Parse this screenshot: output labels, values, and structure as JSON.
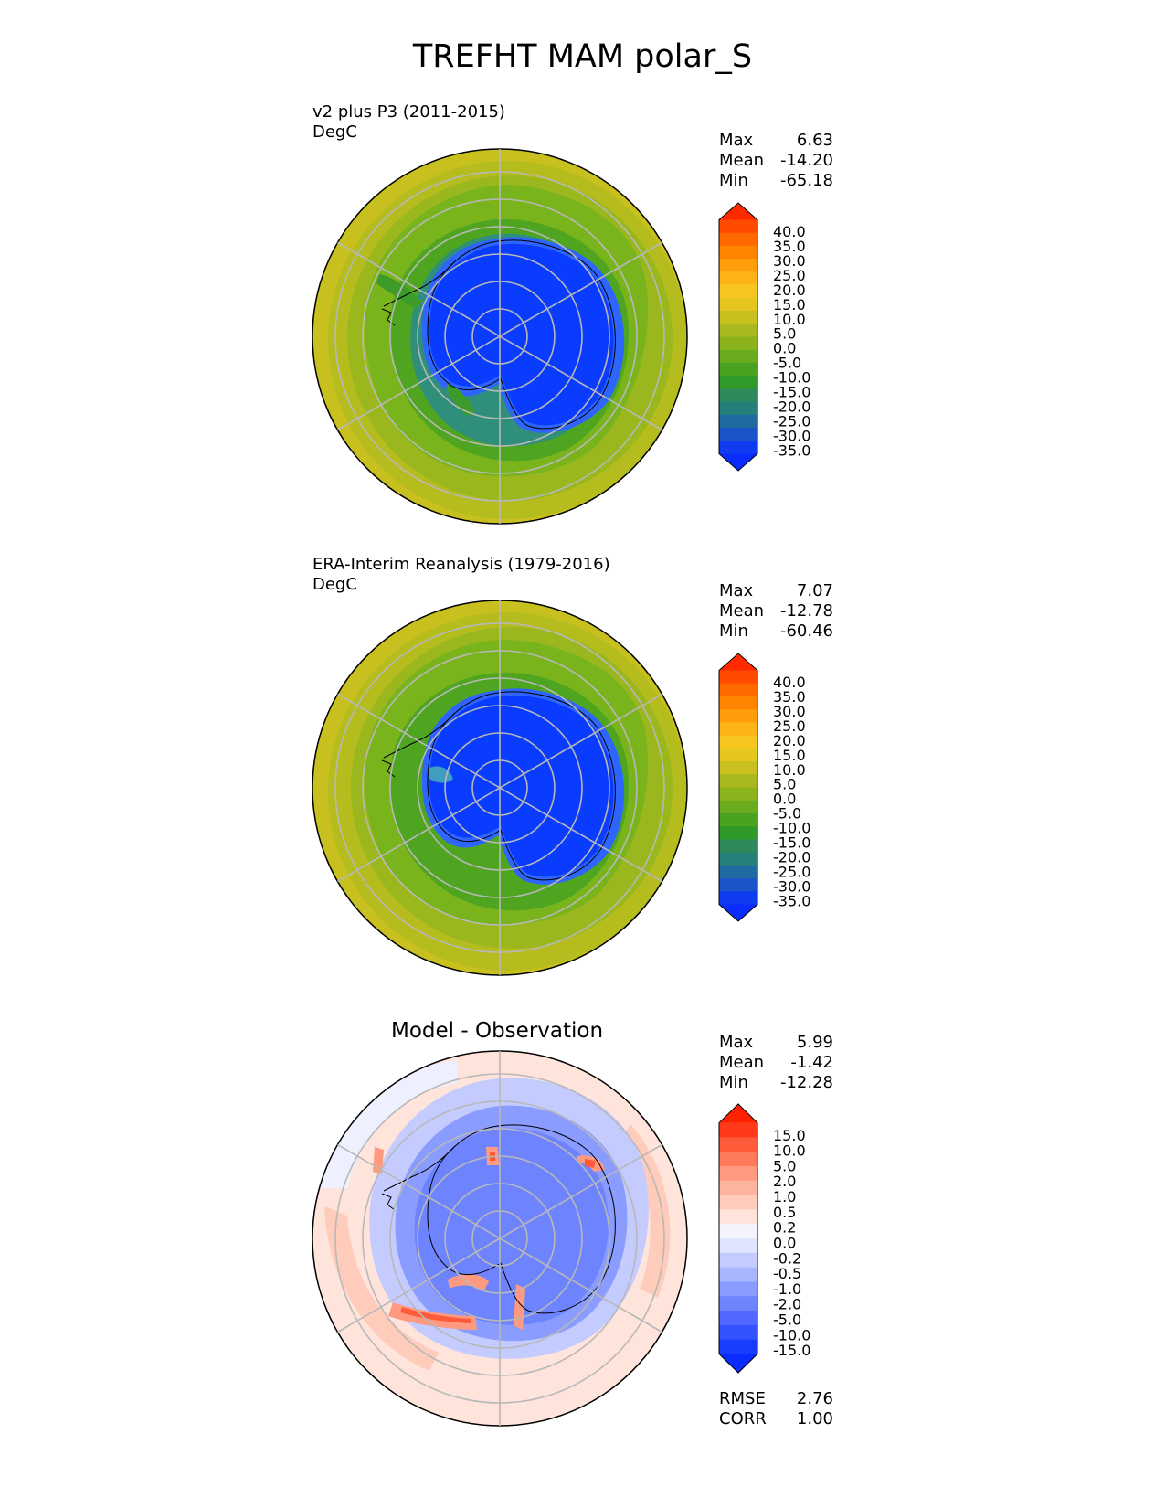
{
  "title": "TREFHT MAM polar_S",
  "colors": {
    "continent": "#0a3cff",
    "coast_ring": "#2e64ff",
    "ice_edge": "#2f8fa0",
    "green_dark": "#2e9a22",
    "green_mid": "#55aa1e",
    "green_light": "#8eb81c",
    "yellow_green": "#b0bd1e",
    "yellow": "#cbc21c",
    "grid": "#b8b8b8",
    "coastline": "#000000"
  },
  "panels": [
    {
      "id": "test",
      "name": "v2 plus P3 (2011-2015)",
      "units": "DegC",
      "stats": [
        {
          "label": "Max",
          "value": "6.63"
        },
        {
          "label": "Mean",
          "value": "-14.20"
        },
        {
          "label": "Min",
          "value": "-65.18"
        }
      ],
      "colorbar": {
        "ticks": [
          "40.0",
          "35.0",
          "30.0",
          "25.0",
          "20.0",
          "15.0",
          "10.0",
          "5.0",
          "0.0",
          "-5.0",
          "-10.0",
          "-15.0",
          "-20.0",
          "-25.0",
          "-30.0",
          "-35.0"
        ],
        "colors": [
          "#ff2a00",
          "#ff4a00",
          "#ff6a00",
          "#ff8400",
          "#ff9e0a",
          "#ffb416",
          "#f6c61e",
          "#e4c61e",
          "#c7c01e",
          "#a9b81e",
          "#8bb41c",
          "#6aac1e",
          "#49a320",
          "#2f9a28",
          "#2e8a5a",
          "#25807a",
          "#1f6aa0",
          "#1a54c8",
          "#0f3cf0",
          "#0a2cff"
        ]
      }
    },
    {
      "id": "reference",
      "name": "ERA-Interim Reanalysis (1979-2016)",
      "units": "DegC",
      "stats": [
        {
          "label": "Max",
          "value": "7.07"
        },
        {
          "label": "Mean",
          "value": "-12.78"
        },
        {
          "label": "Min",
          "value": "-60.46"
        }
      ],
      "colorbar": {
        "ticks": [
          "40.0",
          "35.0",
          "30.0",
          "25.0",
          "20.0",
          "15.0",
          "10.0",
          "5.0",
          "0.0",
          "-5.0",
          "-10.0",
          "-15.0",
          "-20.0",
          "-25.0",
          "-30.0",
          "-35.0"
        ],
        "colors": [
          "#ff2a00",
          "#ff4a00",
          "#ff6a00",
          "#ff8400",
          "#ff9e0a",
          "#ffb416",
          "#f6c61e",
          "#e4c61e",
          "#c7c01e",
          "#a9b81e",
          "#8bb41c",
          "#6aac1e",
          "#49a320",
          "#2f9a28",
          "#2e8a5a",
          "#25807a",
          "#1f6aa0",
          "#1a54c8",
          "#0f3cf0",
          "#0a2cff"
        ]
      }
    },
    {
      "id": "difference",
      "name": "Model - Observation",
      "stats": [
        {
          "label": "Max",
          "value": "5.99"
        },
        {
          "label": "Mean",
          "value": "-1.42"
        },
        {
          "label": "Min",
          "value": "-12.28"
        }
      ],
      "extra_stats": [
        {
          "label": "RMSE",
          "value": "2.76"
        },
        {
          "label": "CORR",
          "value": "1.00"
        }
      ],
      "colorbar": {
        "ticks": [
          "15.0",
          "10.0",
          "5.0",
          "2.0",
          "1.0",
          "0.5",
          "0.2",
          "0.0",
          "-0.2",
          "-0.5",
          "-1.0",
          "-2.0",
          "-5.0",
          "-10.0",
          "-15.0"
        ],
        "colors": [
          "#ff2200",
          "#ff3a1a",
          "#ff5a3a",
          "#ff7a5a",
          "#ff9a80",
          "#ffb4a0",
          "#ffccbc",
          "#ffe4dc",
          "#f4f4ff",
          "#dfe4ff",
          "#c4ccff",
          "#a8b6ff",
          "#8a9cff",
          "#6e84ff",
          "#5068ff",
          "#3452ff",
          "#1a3cff",
          "#0a2cff"
        ]
      }
    }
  ]
}
